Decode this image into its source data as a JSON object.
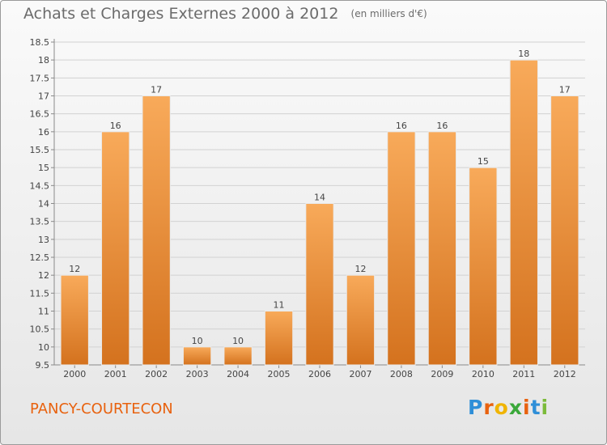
{
  "title": "Achats et Charges Externes 2000 à 2012",
  "subtitle": "(en milliers d'€)",
  "location": "PANCY-COURTECON",
  "logo": {
    "letters": [
      "P",
      "r",
      "o",
      "x",
      "i",
      "t",
      "i"
    ],
    "colors": [
      "#2f8fd8",
      "#e8620f",
      "#f0b400",
      "#3aa83a",
      "#e8620f",
      "#2f8fd8",
      "#7cbb3a"
    ]
  },
  "colors": {
    "bar_light": "#f8aa5a",
    "bar_dark": "#d4721e",
    "location_text": "#e8620f"
  },
  "chart_data": {
    "type": "bar",
    "title": "Achats et Charges Externes 2000 à 2012",
    "unit": "(en milliers d'€)",
    "categories": [
      "2000",
      "2001",
      "2002",
      "2003",
      "2004",
      "2005",
      "2006",
      "2007",
      "2008",
      "2009",
      "2010",
      "2011",
      "2012"
    ],
    "values": [
      12,
      16,
      17,
      10,
      10,
      11,
      14,
      12,
      16,
      16,
      15,
      18,
      17
    ],
    "ylim": [
      9.5,
      18.5
    ],
    "yticks": [
      "9.5",
      "10",
      "10.5",
      "11",
      "11.5",
      "12",
      "12.5",
      "13",
      "13.5",
      "14",
      "14.5",
      "15",
      "15.5",
      "16",
      "16.5",
      "17",
      "17.5",
      "18",
      "18.5"
    ],
    "grid": true,
    "xlabel": "",
    "ylabel": ""
  }
}
